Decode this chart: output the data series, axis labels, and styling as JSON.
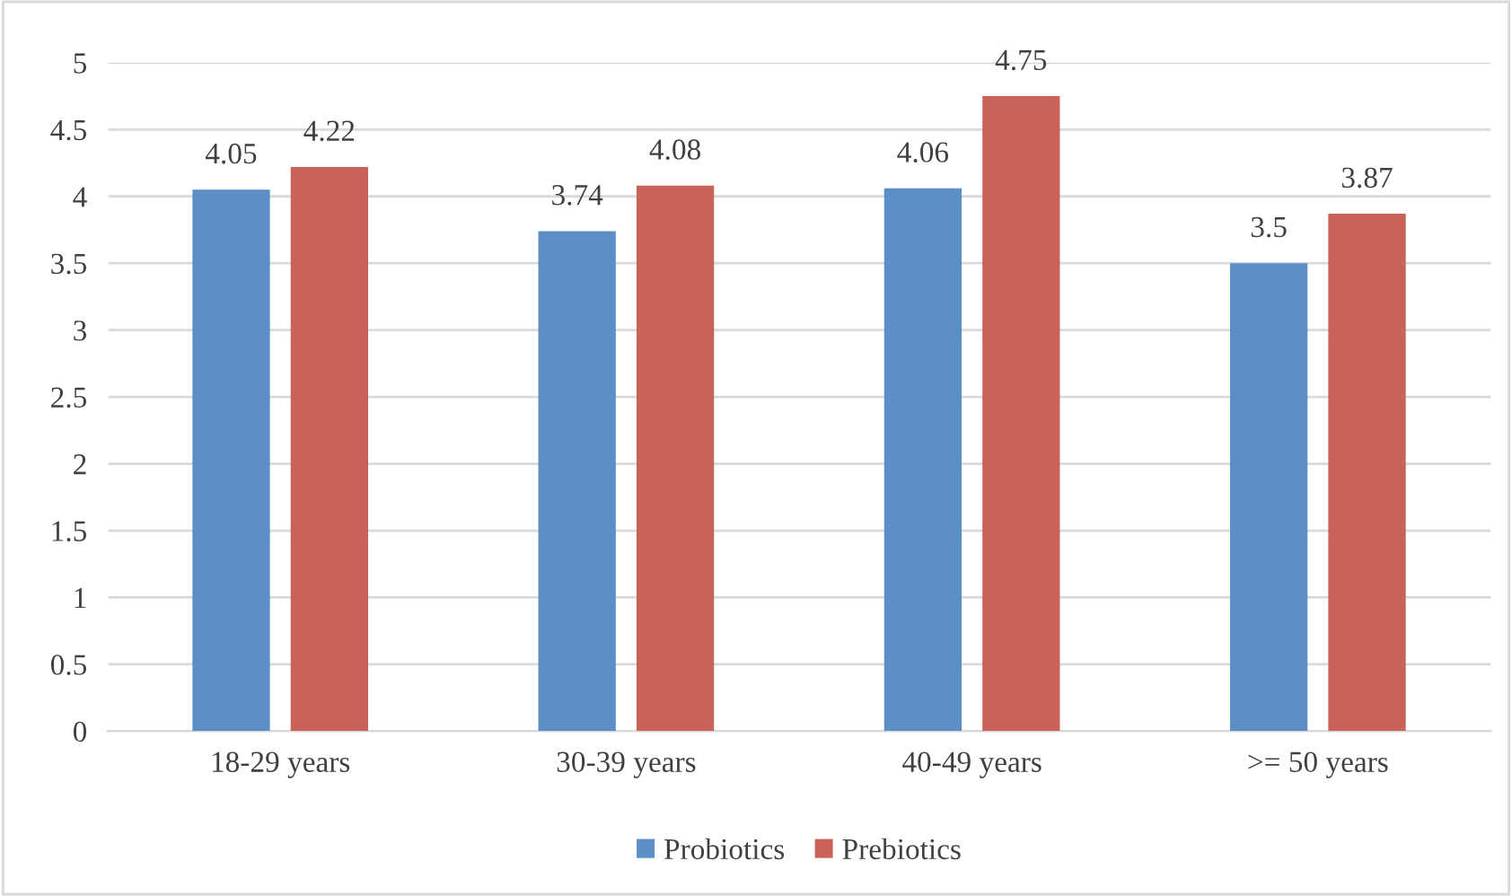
{
  "chart_data": {
    "type": "bar",
    "categories": [
      "18-29 years",
      "30-39 years",
      "40-49 years",
      ">= 50 years"
    ],
    "series": [
      {
        "name": "Probiotics",
        "color": "#5b8fc6",
        "values": [
          4.05,
          3.74,
          4.06,
          3.5
        ]
      },
      {
        "name": "Prebiotics",
        "color": "#c9635a",
        "values": [
          4.22,
          4.08,
          4.75,
          3.87
        ]
      }
    ],
    "ylim": [
      0,
      5
    ],
    "yticks": [
      0,
      0.5,
      1,
      1.5,
      2,
      2.5,
      3,
      3.5,
      4,
      4.5,
      5
    ],
    "grid": "y",
    "legend": "bottom",
    "data_labels": true
  }
}
